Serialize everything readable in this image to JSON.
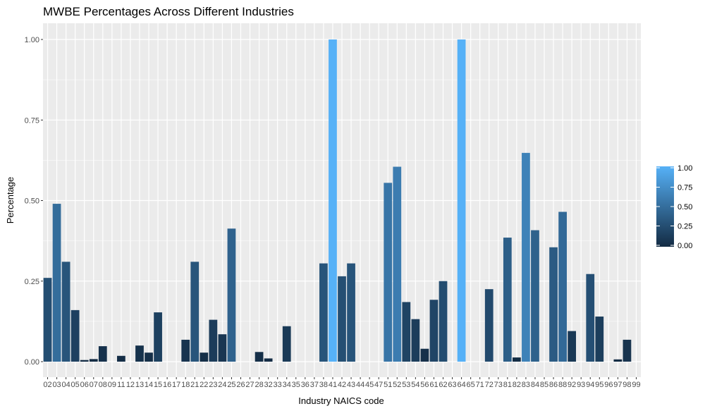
{
  "chart_data": {
    "type": "bar",
    "title": "MWBE Percentages Across Different Industries",
    "xlabel": "Industry NAICS code",
    "ylabel": "Percentage",
    "ylim": [
      0,
      1.0
    ],
    "yticks": [
      "0.00",
      "0.25",
      "0.50",
      "0.75",
      "1.00"
    ],
    "grid": true,
    "legend": {
      "placement": "right",
      "type": "colorbar",
      "ticks": [
        "0.00",
        "0.25",
        "0.50",
        "0.75",
        "1.00"
      ]
    },
    "colors": {
      "low": "#132B43",
      "high": "#56B1F7",
      "panel": "#EBEBEB",
      "grid": "#FFFFFF"
    },
    "categories": [
      "02",
      "03",
      "04",
      "05",
      "06",
      "07",
      "08",
      "09",
      "11",
      "12",
      "13",
      "14",
      "15",
      "16",
      "17",
      "18",
      "21",
      "22",
      "23",
      "24",
      "25",
      "26",
      "27",
      "28",
      "32",
      "33",
      "34",
      "35",
      "36",
      "37",
      "38",
      "41",
      "42",
      "43",
      "44",
      "45",
      "47",
      "51",
      "52",
      "53",
      "54",
      "56",
      "61",
      "62",
      "63",
      "64",
      "65",
      "71",
      "72",
      "73",
      "81",
      "82",
      "83",
      "84",
      "85",
      "86",
      "88",
      "92",
      "93",
      "94",
      "95",
      "96",
      "97",
      "98",
      "99"
    ],
    "values": [
      0.26,
      0.49,
      0.31,
      0.16,
      0.005,
      0.008,
      0.048,
      0,
      0.018,
      0,
      0.05,
      0.028,
      0.153,
      0,
      0,
      0.068,
      0.31,
      0.028,
      0.13,
      0.085,
      0.413,
      0,
      0,
      0.03,
      0.01,
      0,
      0.11,
      0,
      0,
      0,
      0.305,
      1.0,
      0.265,
      0.305,
      0,
      0,
      0,
      0.555,
      0.605,
      0.185,
      0.132,
      0.04,
      0.192,
      0.25,
      0,
      1.0,
      0,
      0,
      0.225,
      0,
      0.385,
      0.013,
      0.648,
      0.408,
      0,
      0.355,
      0.465,
      0.095,
      0,
      0.272,
      0.14,
      0,
      0.007,
      0.068,
      0
    ]
  }
}
